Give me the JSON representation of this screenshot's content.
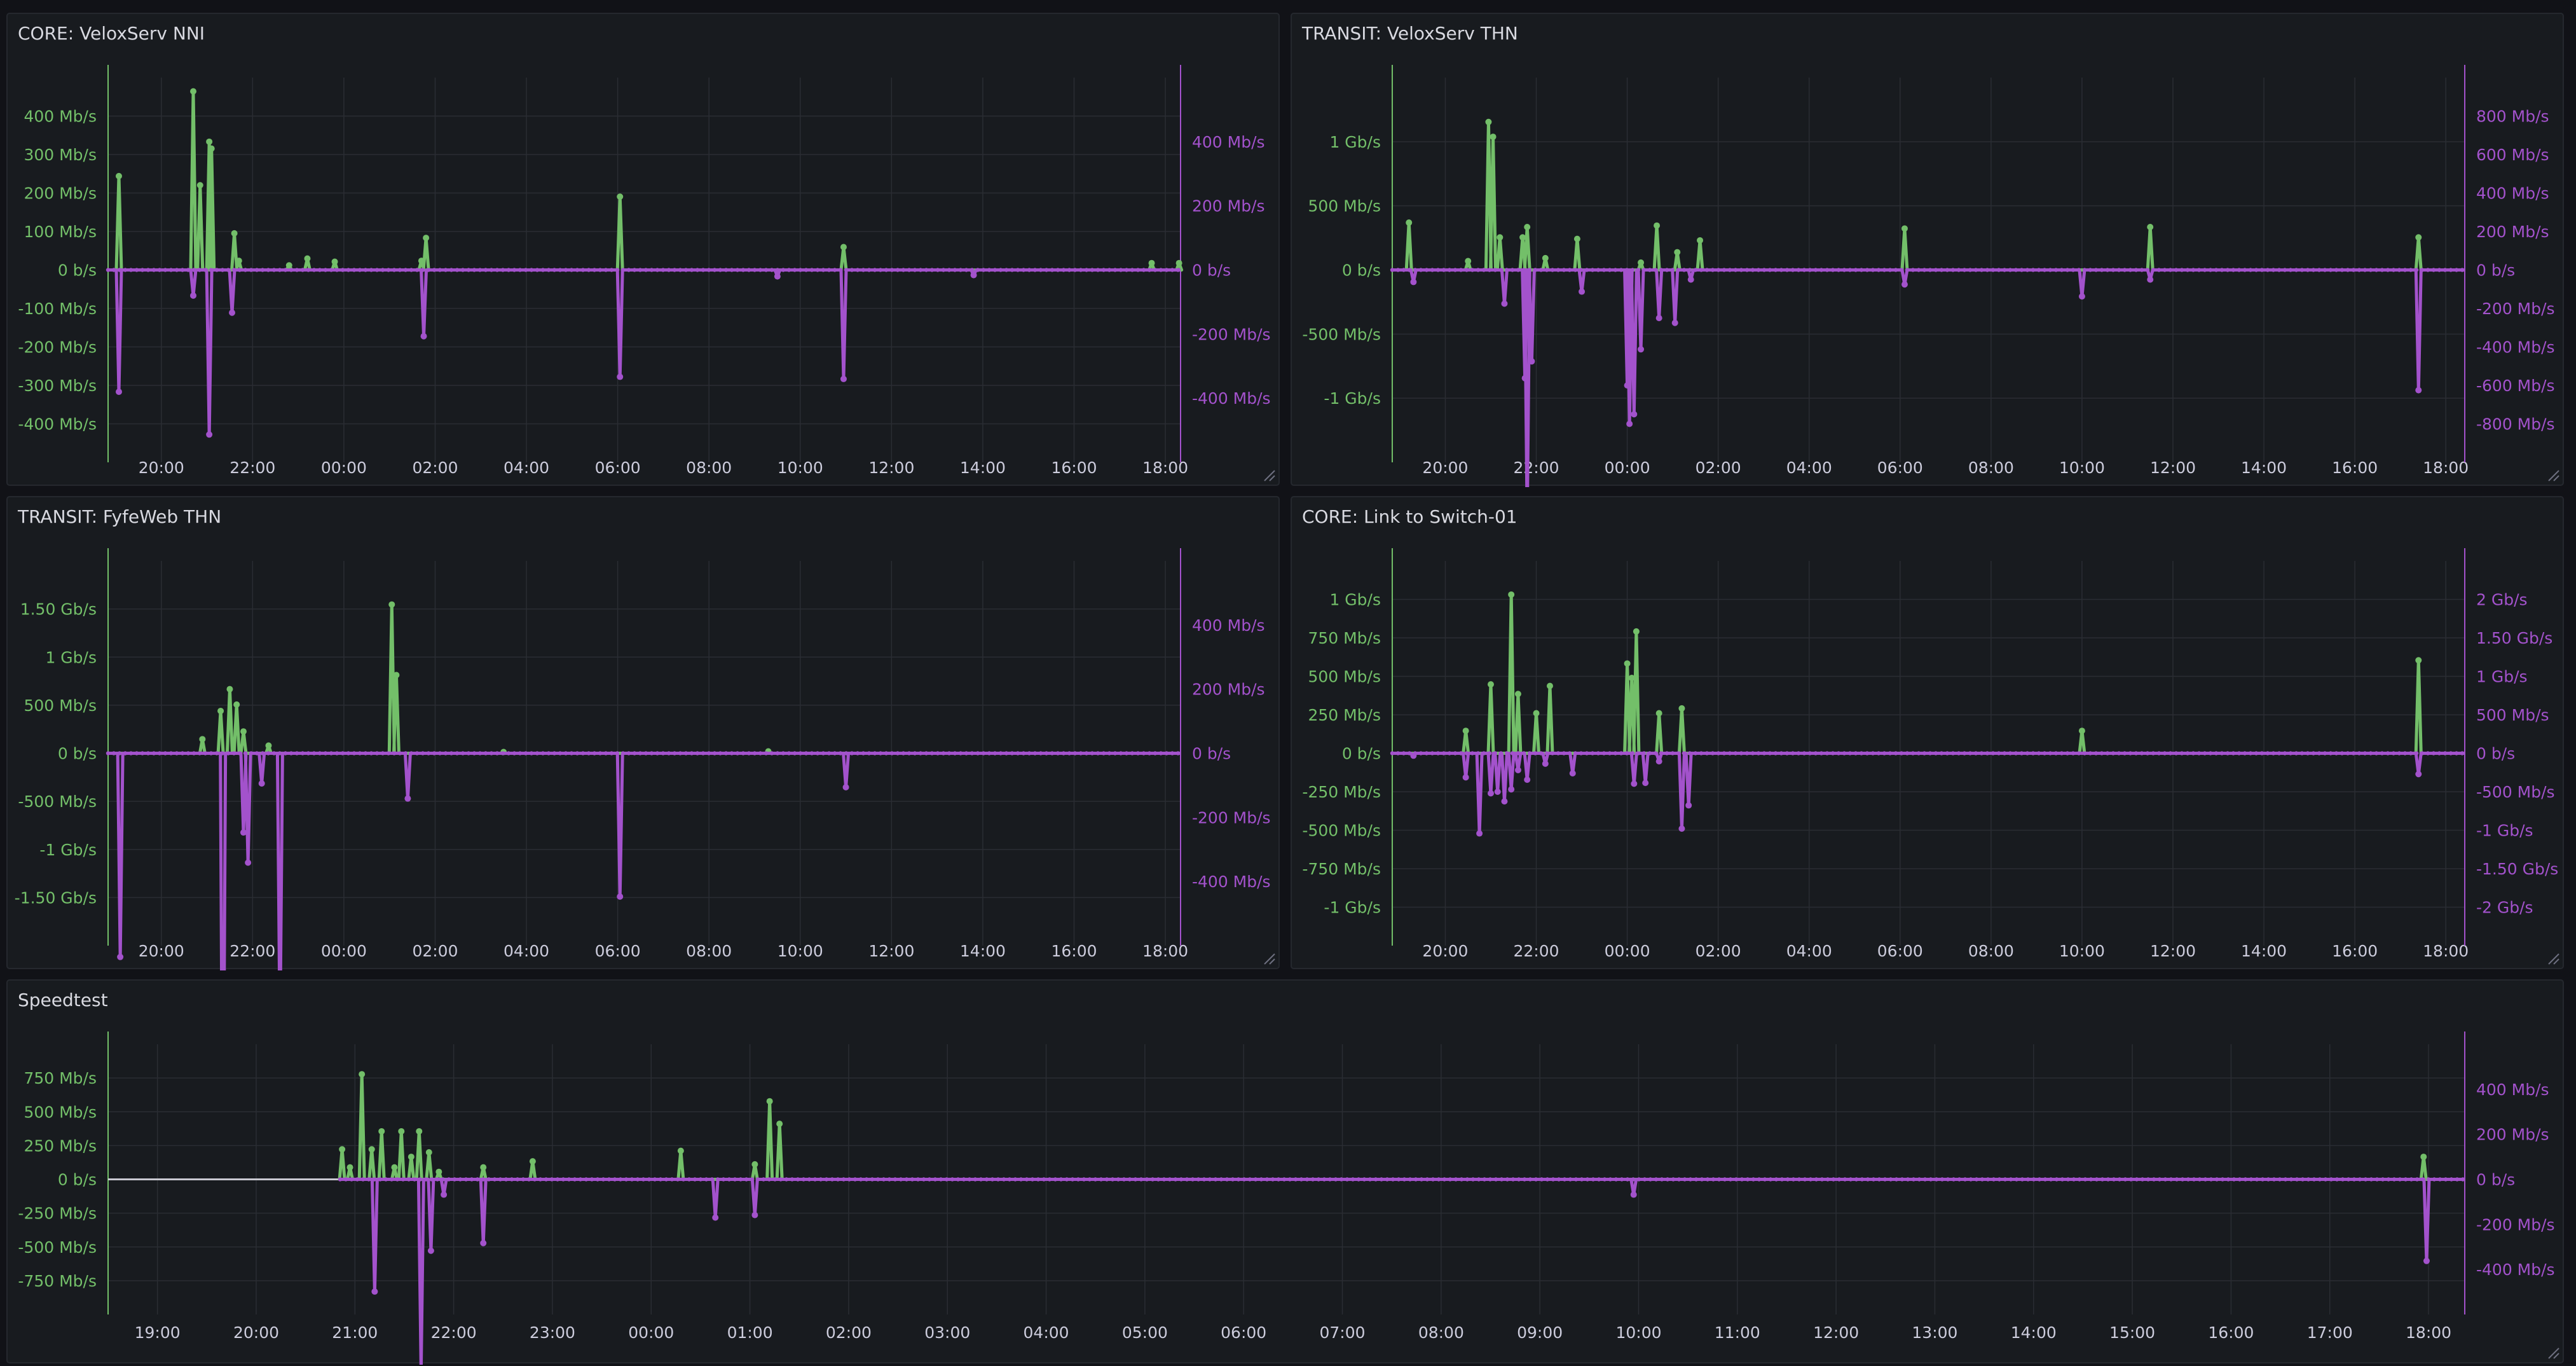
{
  "colors": {
    "background": "#111217",
    "panel": "#181b1f",
    "grid": "#2a2d33",
    "in": "#73bf69",
    "out": "#a352cc",
    "axis_text": "#ccccdc",
    "flat_line": "#c8c8d0"
  },
  "chart_data": [
    {
      "type": "line",
      "title": "CORE: VeloxServ NNI",
      "x_ticks": [
        "20:00",
        "22:00",
        "00:00",
        "02:00",
        "04:00",
        "06:00",
        "08:00",
        "10:00",
        "12:00",
        "14:00",
        "16:00",
        "18:00"
      ],
      "left_axis": {
        "ticks": [
          "400 Mb/s",
          "300 Mb/s",
          "200 Mb/s",
          "100 Mb/s",
          "0 b/s",
          "-100 Mb/s",
          "-200 Mb/s",
          "-300 Mb/s",
          "-400 Mb/s"
        ],
        "range": [
          -420,
          420
        ]
      },
      "right_axis": {
        "ticks": [
          "400 Mb/s",
          "200 Mb/s",
          "0 b/s",
          "-200 Mb/s",
          "-400 Mb/s"
        ],
        "range": [
          -450,
          450
        ]
      },
      "x_range": [
        "18:50",
        "18:20"
      ],
      "series": [
        {
          "values": [
            [
              19.07,
              205
            ],
            [
              20.7,
              390
            ],
            [
              20.85,
              185
            ],
            [
              21.05,
              280
            ],
            [
              21.1,
              265
            ],
            [
              21.6,
              80
            ],
            [
              21.7,
              20
            ],
            [
              22.8,
              10
            ],
            [
              23.2,
              25
            ],
            [
              23.8,
              18
            ],
            [
              25.7,
              20
            ],
            [
              25.8,
              70
            ],
            [
              30.05,
              160
            ],
            [
              34.95,
              50
            ],
            [
              41.7,
              15
            ],
            [
              42.3,
              15
            ]
          ]
        },
        {
          "values": [
            [
              19.07,
              -285
            ],
            [
              20.7,
              -60
            ],
            [
              21.05,
              -385
            ],
            [
              21.55,
              -100
            ],
            [
              25.75,
              -155
            ],
            [
              30.05,
              -250
            ],
            [
              34.95,
              -255
            ],
            [
              33.5,
              -15
            ],
            [
              37.8,
              -12
            ]
          ]
        }
      ]
    },
    {
      "type": "line",
      "title": "TRANSIT: VeloxServ THN",
      "x_ticks": [
        "20:00",
        "22:00",
        "00:00",
        "02:00",
        "04:00",
        "06:00",
        "08:00",
        "10:00",
        "12:00",
        "14:00",
        "16:00",
        "18:00"
      ],
      "left_axis": {
        "ticks": [
          "1 Gb/s",
          "500 Mb/s",
          "0 b/s",
          "-500 Mb/s",
          "-1 Gb/s"
        ],
        "range": [
          -1300,
          1300
        ]
      },
      "right_axis": {
        "ticks": [
          "800 Mb/s",
          "600 Mb/s",
          "400 Mb/s",
          "200 Mb/s",
          "0 b/s",
          "-200 Mb/s",
          "-400 Mb/s",
          "-600 Mb/s",
          "-800 Mb/s"
        ],
        "range": [
          -800,
          800
        ]
      },
      "x_range": [
        "18:50",
        "18:25"
      ],
      "series": [
        {
          "values": [
            [
              19.2,
              320
            ],
            [
              20.5,
              60
            ],
            [
              20.95,
              1000
            ],
            [
              21.05,
              900
            ],
            [
              21.2,
              220
            ],
            [
              21.7,
              220
            ],
            [
              21.8,
              290
            ],
            [
              22.2,
              80
            ],
            [
              22.9,
              210
            ],
            [
              24.3,
              50
            ],
            [
              24.65,
              300
            ],
            [
              25.1,
              120
            ],
            [
              25.6,
              200
            ],
            [
              30.1,
              280
            ],
            [
              35.5,
              290
            ],
            [
              41.4,
              220
            ]
          ]
        },
        {
          "values": [
            [
              19.3,
              -50
            ],
            [
              21.3,
              -140
            ],
            [
              21.75,
              -450
            ],
            [
              21.8,
              -1050
            ],
            [
              21.9,
              -380
            ],
            [
              23.0,
              -90
            ],
            [
              24.0,
              -480
            ],
            [
              24.05,
              -640
            ],
            [
              24.15,
              -600
            ],
            [
              24.3,
              -330
            ],
            [
              24.7,
              -200
            ],
            [
              25.05,
              -220
            ],
            [
              25.4,
              -40
            ],
            [
              30.1,
              -60
            ],
            [
              34.0,
              -110
            ],
            [
              35.5,
              -40
            ],
            [
              41.4,
              -500
            ]
          ]
        }
      ]
    },
    {
      "type": "line",
      "title": "TRANSIT: FyfeWeb THN",
      "x_ticks": [
        "20:00",
        "22:00",
        "00:00",
        "02:00",
        "04:00",
        "06:00",
        "08:00",
        "10:00",
        "12:00",
        "14:00",
        "16:00",
        "18:00"
      ],
      "left_axis": {
        "ticks": [
          "1.50 Gb/s",
          "1 Gb/s",
          "500 Mb/s",
          "0 b/s",
          "-500 Mb/s",
          "-1 Gb/s",
          "-1.50 Gb/s"
        ],
        "range": [
          -1500,
          1500
        ]
      },
      "right_axis": {
        "ticks": [
          "400 Mb/s",
          "200 Mb/s",
          "0 b/s",
          "-200 Mb/s",
          "-400 Mb/s"
        ],
        "range": [
          -510,
          510
        ]
      },
      "x_range": [
        "18:50",
        "18:20"
      ],
      "series": [
        {
          "values": [
            [
              20.9,
              110
            ],
            [
              21.3,
              330
            ],
            [
              21.5,
              500
            ],
            [
              21.65,
              380
            ],
            [
              21.8,
              170
            ],
            [
              22.35,
              60
            ],
            [
              25.05,
              1160
            ],
            [
              25.15,
              610
            ],
            [
              27.5,
              10
            ],
            [
              33.3,
              15
            ]
          ]
        },
        {
          "values": [
            [
              19.1,
              -540
            ],
            [
              21.35,
              -1230
            ],
            [
              21.8,
              -210
            ],
            [
              21.9,
              -290
            ],
            [
              22.2,
              -80
            ],
            [
              22.6,
              -750
            ],
            [
              25.4,
              -120
            ],
            [
              30.05,
              -380
            ],
            [
              35.0,
              -90
            ]
          ]
        }
      ]
    },
    {
      "type": "line",
      "title": "CORE: Link to Switch-01",
      "x_ticks": [
        "20:00",
        "22:00",
        "00:00",
        "02:00",
        "04:00",
        "06:00",
        "08:00",
        "10:00",
        "12:00",
        "14:00",
        "16:00",
        "18:00"
      ],
      "left_axis": {
        "ticks": [
          "1 Gb/s",
          "750 Mb/s",
          "500 Mb/s",
          "250 Mb/s",
          "0 b/s",
          "-250 Mb/s",
          "-500 Mb/s",
          "-750 Mb/s",
          "-1 Gb/s"
        ],
        "range": [
          -1200,
          1200
        ]
      },
      "right_axis": {
        "ticks": [
          "2 Gb/s",
          "1.50 Gb/s",
          "1 Gb/s",
          "500 Mb/s",
          "0 b/s",
          "-500 Mb/s",
          "-1 Gb/s",
          "-1.50 Gb/s",
          "-2 Gb/s"
        ],
        "range": [
          -2400,
          2400
        ]
      },
      "x_range": [
        "18:50",
        "18:25"
      ],
      "series": [
        {
          "values": [
            [
              20.45,
              140
            ],
            [
              21.0,
              430
            ],
            [
              21.45,
              990
            ],
            [
              21.6,
              370
            ],
            [
              22.0,
              250
            ],
            [
              22.3,
              420
            ],
            [
              24.0,
              560
            ],
            [
              24.1,
              470
            ],
            [
              24.2,
              760
            ],
            [
              24.7,
              250
            ],
            [
              25.2,
              280
            ],
            [
              34.0,
              140
            ],
            [
              41.4,
              580
            ]
          ]
        },
        {
          "values": [
            [
              19.3,
              -30
            ],
            [
              20.45,
              -300
            ],
            [
              20.75,
              -1000
            ],
            [
              21.0,
              -500
            ],
            [
              21.15,
              -480
            ],
            [
              21.3,
              -600
            ],
            [
              21.45,
              -450
            ],
            [
              21.6,
              -210
            ],
            [
              21.8,
              -330
            ],
            [
              22.2,
              -130
            ],
            [
              22.8,
              -250
            ],
            [
              24.15,
              -380
            ],
            [
              24.4,
              -370
            ],
            [
              24.7,
              -100
            ],
            [
              25.2,
              -940
            ],
            [
              25.35,
              -650
            ],
            [
              41.4,
              -260
            ]
          ]
        }
      ]
    },
    {
      "type": "line",
      "title": "Speedtest",
      "x_ticks": [
        "19:00",
        "20:00",
        "21:00",
        "22:00",
        "23:00",
        "00:00",
        "01:00",
        "02:00",
        "03:00",
        "04:00",
        "05:00",
        "06:00",
        "07:00",
        "08:00",
        "09:00",
        "10:00",
        "11:00",
        "12:00",
        "13:00",
        "14:00",
        "15:00",
        "16:00",
        "17:00",
        "18:00"
      ],
      "left_axis": {
        "ticks": [
          "750 Mb/s",
          "500 Mb/s",
          "250 Mb/s",
          "0 b/s",
          "-250 Mb/s",
          "-500 Mb/s",
          "-750 Mb/s"
        ],
        "range": [
          -900,
          900
        ]
      },
      "right_axis": {
        "ticks": [
          "400 Mb/s",
          "200 Mb/s",
          "0 b/s",
          "-200 Mb/s",
          "-400 Mb/s"
        ],
        "range": [
          -530,
          530
        ]
      },
      "x_range": [
        "18:30",
        "18:22"
      ],
      "data_start": 20.85,
      "series": [
        {
          "values": [
            [
              20.87,
              200
            ],
            [
              20.95,
              80
            ],
            [
              21.07,
              700
            ],
            [
              21.17,
              200
            ],
            [
              21.27,
              320
            ],
            [
              21.4,
              80
            ],
            [
              21.47,
              320
            ],
            [
              21.57,
              150
            ],
            [
              21.65,
              320
            ],
            [
              21.75,
              180
            ],
            [
              21.85,
              50
            ],
            [
              22.3,
              80
            ],
            [
              22.8,
              120
            ],
            [
              24.3,
              190
            ],
            [
              25.05,
              100
            ],
            [
              25.2,
              520
            ],
            [
              25.3,
              370
            ],
            [
              41.95,
              150
            ]
          ]
        },
        {
          "values": [
            [
              21.2,
              -440
            ],
            [
              21.67,
              -750
            ],
            [
              21.77,
              -280
            ],
            [
              21.9,
              -60
            ],
            [
              22.3,
              -250
            ],
            [
              24.65,
              -150
            ],
            [
              25.05,
              -140
            ],
            [
              33.95,
              -60
            ],
            [
              41.98,
              -320
            ]
          ]
        }
      ]
    }
  ]
}
